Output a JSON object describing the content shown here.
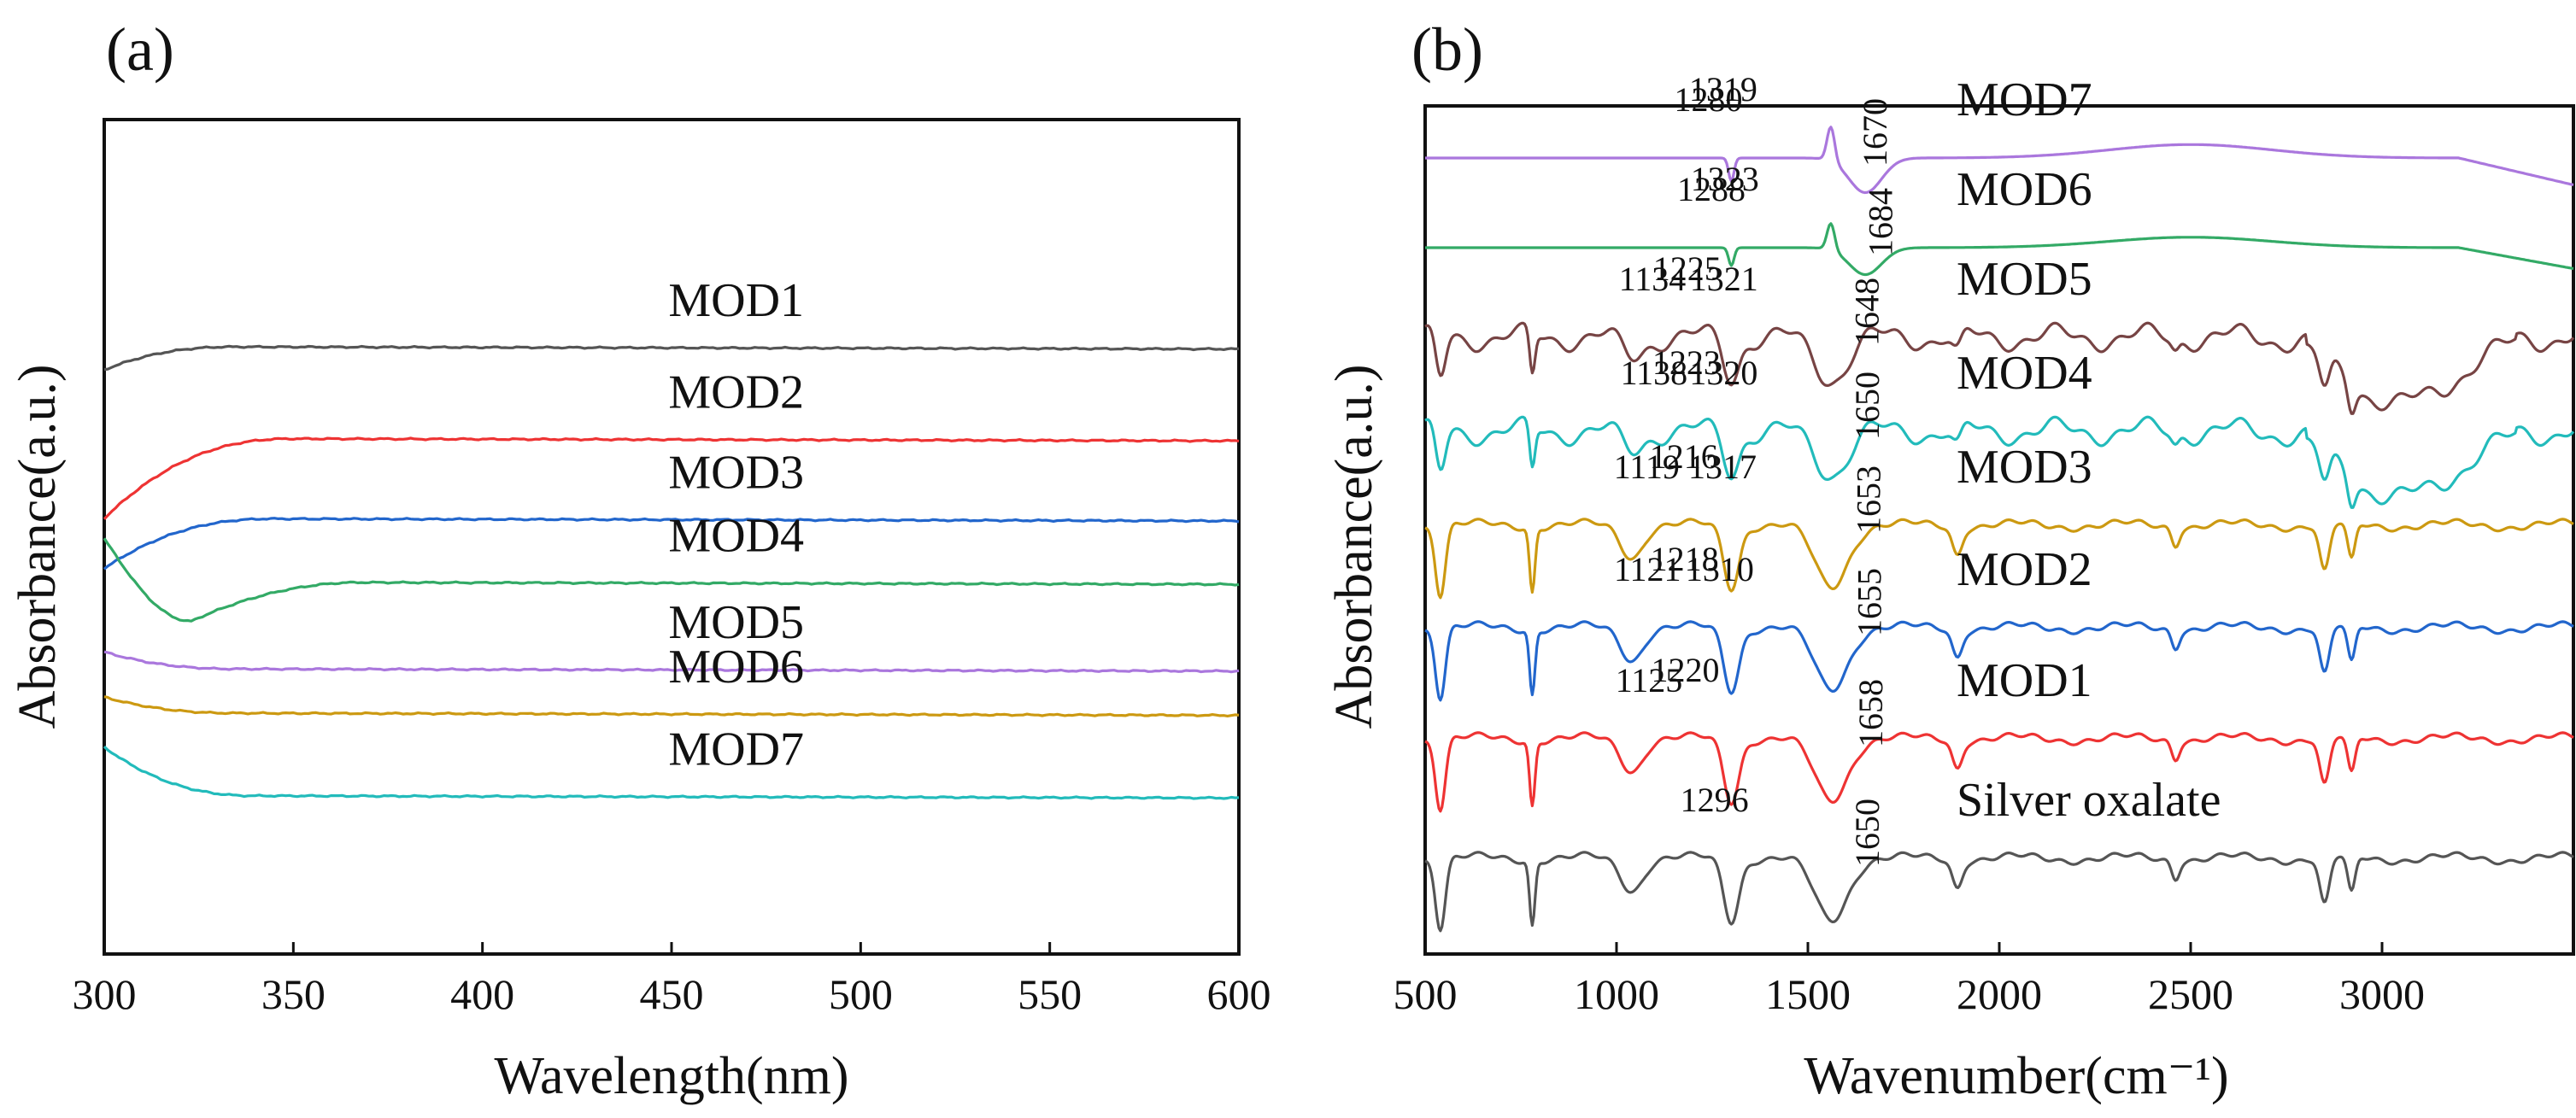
{
  "chart_data": [
    {
      "type": "line",
      "panel_label": "(a)",
      "xlabel": "Wavelength(nm)",
      "ylabel": "Absorbance(a.u.)",
      "xlim": [
        300,
        600
      ],
      "x_ticks": [
        "300",
        "350",
        "400",
        "450",
        "500",
        "550",
        "600"
      ],
      "y_ticks": "none",
      "grid": false,
      "legend": "inline labels above each trace",
      "series": [
        {
          "name": "MOD1",
          "color": "#555555",
          "label_at": 440,
          "label_offset": 6.8,
          "base": 2.72,
          "start": 3.0,
          "drop_end": 335,
          "curve": "decay"
        },
        {
          "name": "MOD2",
          "color": "#ee3333",
          "label_at": 440,
          "label_offset": 5.0,
          "base": 3.82,
          "start": 4.78,
          "drop_end": 350,
          "curve": "decay"
        },
        {
          "name": "MOD3",
          "color": "#2266cc",
          "label_at": 440,
          "label_offset": 4.1,
          "base": 4.78,
          "start": 5.38,
          "drop_end": 345,
          "curve": "decay"
        },
        {
          "name": "MOD4",
          "color": "#33aa66",
          "label_at": 440,
          "label_offset": 3.2,
          "base": 5.54,
          "start": 5.02,
          "dip": 6.01,
          "dip_at": 323,
          "curve": "dip"
        },
        {
          "name": "MOD5",
          "color": "#aa77dd",
          "label_at": 440,
          "label_offset": 2.2,
          "base": 6.58,
          "start": 6.38,
          "drop_end": 335,
          "curve": "decay"
        },
        {
          "name": "MOD6",
          "color": "#cc9911",
          "label_at": 440,
          "label_offset": 1.3,
          "base": 7.11,
          "start": 6.92,
          "drop_end": 335,
          "curve": "decay"
        },
        {
          "name": "MOD7",
          "color": "#22bbbb",
          "label_at": 440,
          "label_offset": 0.55,
          "base": 8.1,
          "start": 7.52,
          "drop_end": 340,
          "curve": "decay"
        }
      ]
    },
    {
      "type": "line",
      "panel_label": "(b)",
      "xlabel": "Wavenumber(cm⁻¹)",
      "ylabel": "Absorbance(a.u.)",
      "xlim": [
        500,
        3500
      ],
      "x_ticks": [
        "500",
        "1000",
        "1500",
        "2000",
        "2500",
        "3000"
      ],
      "y_ticks": "none",
      "grid": false,
      "legend": "inline labels above each trace",
      "series": [
        {
          "name": "MOD7",
          "color": "#aa77dd",
          "offset": 7.0,
          "annotations": [
            "1280",
            "1319",
            "1670"
          ]
        },
        {
          "name": "MOD6",
          "color": "#33aa66",
          "offset": 6.0,
          "annotations": [
            "1288",
            "1323",
            "1684"
          ]
        },
        {
          "name": "MOD5",
          "color": "#774444",
          "offset": 5.0,
          "annotations": [
            "1134",
            "1225",
            "1321",
            "1648"
          ]
        },
        {
          "name": "MOD4",
          "color": "#22bbbb",
          "offset": 4.0,
          "annotations": [
            "1138",
            "1223",
            "1320",
            "1650"
          ]
        },
        {
          "name": "MOD3",
          "color": "#cc9911",
          "offset": 3.0,
          "annotations": [
            "1119",
            "1216",
            "1317",
            "1653"
          ]
        },
        {
          "name": "MOD2",
          "color": "#2266cc",
          "offset": 2.0,
          "annotations": [
            "1121",
            "1218",
            "1310",
            "1655"
          ]
        },
        {
          "name": "MOD1",
          "color": "#ee3333",
          "offset": 1.0,
          "annotations": [
            "1125",
            "1220",
            "1658"
          ]
        },
        {
          "name": "Silver oxalate",
          "color": "#555555",
          "offset": 0.0,
          "annotations": [
            "1296",
            "1650"
          ]
        }
      ]
    }
  ]
}
